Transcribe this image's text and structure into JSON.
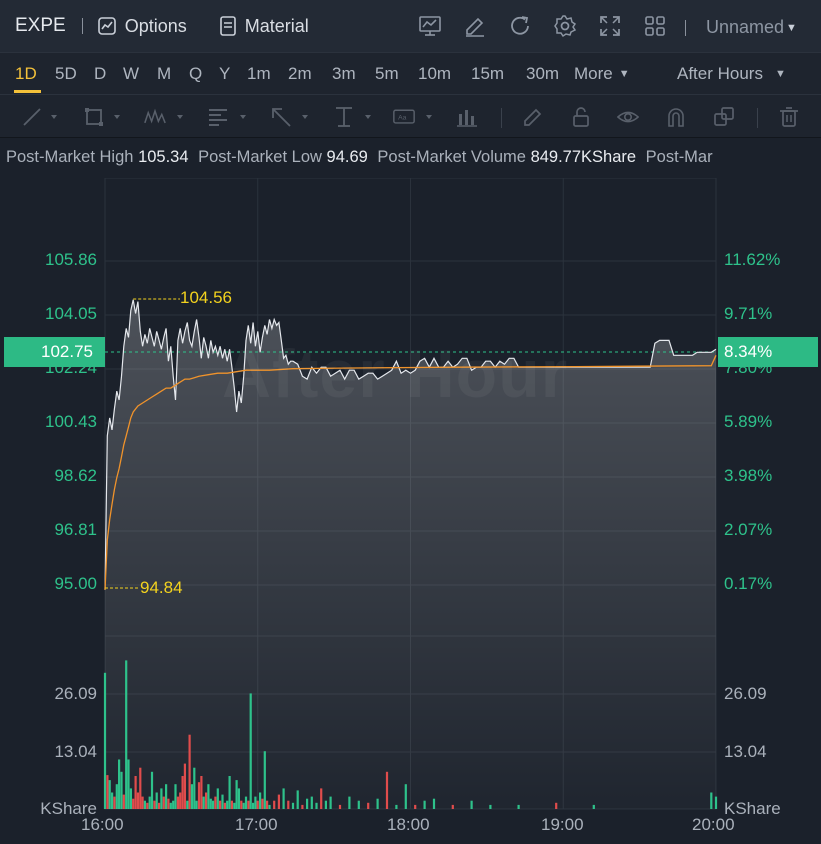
{
  "toolbar": {
    "symbol": "EXPE",
    "options_label": "Options",
    "material_label": "Material",
    "icons": [
      "chart-indicator-icon",
      "draw-icon",
      "refresh-icon",
      "settings-icon",
      "fullscreen-icon",
      "grid-layout-icon"
    ],
    "layout_label": "Unnamed"
  },
  "periods": [
    "1D",
    "5D",
    "D",
    "W",
    "M",
    "Q",
    "Y",
    "1m",
    "2m",
    "3m",
    "5m",
    "10m",
    "15m",
    "30m"
  ],
  "active_period": "1D",
  "more_label": "More",
  "session_label": "After Hours",
  "drawing_tools": [
    "line-tool-icon",
    "rectangle-tool-icon",
    "pattern-tool-icon",
    "text-tool-icon",
    "arrow-tool-icon",
    "measure-tool-icon",
    "annotation-tool-icon",
    "bar-tool-icon",
    "brush-icon",
    "lock-icon",
    "eye-icon",
    "magnet-icon",
    "copy-icon",
    "trash-icon"
  ],
  "stats": [
    {
      "label": "Post-Market High",
      "value": "105.34"
    },
    {
      "label": "Post-Market Low",
      "value": "94.69"
    },
    {
      "label": "Post-Market Volume",
      "value": "849.77KShare"
    },
    {
      "label": "Post-Mar",
      "value": ""
    }
  ],
  "watermark": "After Hour",
  "current_price": "102.75",
  "current_pct": "8.34%",
  "colors": {
    "up": "#2ec28b",
    "down": "#e04c4c",
    "price_line": "#e4e7ec",
    "avg_line": "#f0932b",
    "annotation": "#f3d21e",
    "active": "#f3c13a"
  },
  "chart_data": {
    "type": "line",
    "x_ticks": [
      "16:00",
      "17:00",
      "18:00",
      "19:00",
      "20:00"
    ],
    "y_ticks_price": [
      "105.86",
      "104.05",
      "102.24",
      "100.43",
      "98.62",
      "96.81",
      "95.00"
    ],
    "y_ticks_pct": [
      "11.62%",
      "9.71%",
      "7.80%",
      "5.89%",
      "3.98%",
      "2.07%",
      "0.17%"
    ],
    "ylim_price": [
      95.0,
      105.86
    ],
    "volume_ticks": [
      "26.09",
      "13.04"
    ],
    "volume_unit": "KShare",
    "annotations": {
      "high": "104.56",
      "low": "94.84"
    },
    "price_series": [
      [
        0,
        94.84
      ],
      [
        1,
        100.0
      ],
      [
        2,
        100.6
      ],
      [
        3,
        100.2
      ],
      [
        4,
        100.9
      ],
      [
        5,
        101.5
      ],
      [
        6,
        101.2
      ],
      [
        7,
        102.0
      ],
      [
        8,
        103.0
      ],
      [
        9,
        103.6
      ],
      [
        10,
        103.3
      ],
      [
        11,
        104.2
      ],
      [
        12,
        104.56
      ],
      [
        13,
        104.1
      ],
      [
        14,
        104.5
      ],
      [
        15,
        103.5
      ],
      [
        16,
        103.0
      ],
      [
        17,
        103.4
      ],
      [
        18,
        103.1
      ],
      [
        19,
        103.6
      ],
      [
        20,
        103.3
      ],
      [
        21,
        103.0
      ],
      [
        22,
        103.5
      ],
      [
        23,
        103.2
      ],
      [
        24,
        102.9
      ],
      [
        25,
        103.3
      ],
      [
        26,
        103.6
      ],
      [
        27,
        102.5
      ],
      [
        28,
        103.0
      ],
      [
        29,
        102.0
      ],
      [
        30,
        101.2
      ],
      [
        31,
        103.2
      ],
      [
        32,
        103.6
      ],
      [
        33,
        103.1
      ],
      [
        34,
        103.5
      ],
      [
        35,
        103.8
      ],
      [
        36,
        103.2
      ],
      [
        37,
        103.0
      ],
      [
        38,
        103.5
      ],
      [
        39,
        103.9
      ],
      [
        40,
        103.3
      ],
      [
        41,
        102.6
      ],
      [
        42,
        103.3
      ],
      [
        43,
        103.0
      ],
      [
        44,
        102.6
      ],
      [
        45,
        103.2
      ],
      [
        46,
        102.8
      ],
      [
        47,
        103.0
      ],
      [
        48,
        102.7
      ],
      [
        49,
        103.0
      ],
      [
        50,
        102.6
      ],
      [
        51,
        102.9
      ],
      [
        52,
        102.5
      ],
      [
        53,
        102.9
      ],
      [
        54,
        102.3
      ],
      [
        55,
        101.6
      ],
      [
        56,
        100.8
      ],
      [
        57,
        101.5
      ],
      [
        58,
        101.1
      ],
      [
        59,
        102.0
      ],
      [
        60,
        103.2
      ],
      [
        61,
        103.7
      ],
      [
        62,
        103.1
      ],
      [
        63,
        103.8
      ],
      [
        64,
        103.0
      ],
      [
        65,
        103.5
      ],
      [
        66,
        102.8
      ],
      [
        67,
        103.3
      ],
      [
        68,
        103.7
      ],
      [
        69,
        103.4
      ],
      [
        70,
        103.9
      ],
      [
        71,
        103.6
      ],
      [
        72,
        103.9
      ],
      [
        73,
        103.7
      ],
      [
        74,
        103.8
      ],
      [
        75,
        103.2
      ],
      [
        76,
        102.6
      ],
      [
        77,
        102.7
      ],
      [
        78,
        102.4
      ],
      [
        79,
        102.5
      ],
      [
        80,
        102.5
      ],
      [
        82,
        102.4
      ],
      [
        84,
        102.0
      ],
      [
        86,
        101.9
      ],
      [
        88,
        102.3
      ],
      [
        90,
        102.1
      ],
      [
        92,
        102.3
      ],
      [
        94,
        102.3
      ],
      [
        96,
        102.0
      ],
      [
        98,
        102.1
      ],
      [
        100,
        102.2
      ],
      [
        102,
        101.9
      ],
      [
        104,
        102.2
      ],
      [
        106,
        102.2
      ],
      [
        108,
        101.9
      ],
      [
        110,
        102.0
      ],
      [
        112,
        102.1
      ],
      [
        114,
        102.1
      ],
      [
        116,
        101.9
      ],
      [
        118,
        102.0
      ],
      [
        120,
        102.1
      ],
      [
        122,
        102.2
      ],
      [
        124,
        102.5
      ],
      [
        126,
        102.1
      ],
      [
        128,
        102.2
      ],
      [
        130,
        102.1
      ],
      [
        132,
        102.2
      ],
      [
        134,
        102.5
      ],
      [
        136,
        102.6
      ],
      [
        138,
        102.3
      ],
      [
        140,
        102.6
      ],
      [
        142,
        102.3
      ],
      [
        144,
        102.3
      ],
      [
        146,
        102.5
      ],
      [
        148,
        102.3
      ],
      [
        150,
        102.4
      ],
      [
        152,
        102.6
      ],
      [
        154,
        102.6
      ],
      [
        156,
        102.2
      ],
      [
        158,
        102.3
      ],
      [
        160,
        102.3
      ],
      [
        162,
        102.5
      ],
      [
        164,
        102.5
      ],
      [
        166,
        102.3
      ],
      [
        168,
        102.5
      ],
      [
        170,
        102.4
      ],
      [
        172,
        102.6
      ],
      [
        174,
        102.6
      ],
      [
        176,
        102.3
      ],
      [
        178,
        102.3
      ],
      [
        180,
        102.3
      ],
      [
        182,
        102.3
      ],
      [
        184,
        102.3
      ],
      [
        186,
        102.3
      ],
      [
        188,
        102.3
      ],
      [
        190,
        102.3
      ],
      [
        192,
        102.3
      ],
      [
        194,
        102.3
      ],
      [
        196,
        102.3
      ],
      [
        198,
        102.3
      ],
      [
        200,
        102.3
      ],
      [
        202,
        102.3
      ],
      [
        204,
        102.3
      ],
      [
        206,
        102.3
      ],
      [
        208,
        102.3
      ],
      [
        210,
        102.3
      ],
      [
        212,
        102.3
      ],
      [
        214,
        102.3
      ],
      [
        216,
        102.3
      ],
      [
        218,
        102.3
      ],
      [
        220,
        102.3
      ],
      [
        222,
        102.3
      ],
      [
        224,
        102.3
      ],
      [
        226,
        102.3
      ],
      [
        228,
        102.3
      ],
      [
        230,
        102.3
      ],
      [
        232,
        102.3
      ],
      [
        234,
        103.1
      ],
      [
        236,
        103.2
      ],
      [
        238,
        103.2
      ],
      [
        240,
        103.2
      ],
      [
        242,
        102.7
      ],
      [
        244,
        102.7
      ],
      [
        246,
        102.7
      ],
      [
        248,
        102.7
      ],
      [
        250,
        102.7
      ],
      [
        252,
        102.8
      ],
      [
        254,
        102.8
      ],
      [
        256,
        102.8
      ],
      [
        258,
        102.8
      ],
      [
        260,
        102.9
      ]
    ],
    "avg_series": [
      [
        0,
        94.84
      ],
      [
        1,
        96.5
      ],
      [
        2,
        97.2
      ],
      [
        3,
        97.7
      ],
      [
        4,
        98.2
      ],
      [
        5,
        98.6
      ],
      [
        6,
        98.9
      ],
      [
        7,
        99.3
      ],
      [
        8,
        99.7
      ],
      [
        9,
        100.0
      ],
      [
        10,
        100.3
      ],
      [
        11,
        100.6
      ],
      [
        12,
        100.8
      ],
      [
        14,
        101.0
      ],
      [
        16,
        101.1
      ],
      [
        18,
        101.2
      ],
      [
        20,
        101.3
      ],
      [
        22,
        101.4
      ],
      [
        24,
        101.5
      ],
      [
        26,
        101.6
      ],
      [
        28,
        101.6
      ],
      [
        30,
        101.7
      ],
      [
        32,
        101.8
      ],
      [
        34,
        101.9
      ],
      [
        36,
        101.9
      ],
      [
        38,
        101.95
      ],
      [
        40,
        102.0
      ],
      [
        44,
        102.05
      ],
      [
        48,
        102.1
      ],
      [
        52,
        102.1
      ],
      [
        56,
        102.15
      ],
      [
        60,
        102.2
      ],
      [
        70,
        102.2
      ],
      [
        80,
        102.25
      ],
      [
        100,
        102.27
      ],
      [
        150,
        102.3
      ],
      [
        200,
        102.32
      ],
      [
        258,
        102.35
      ],
      [
        260,
        102.7
      ]
    ],
    "volume_bars": [
      [
        0,
        33.0,
        "up"
      ],
      [
        1,
        8.2,
        "down"
      ],
      [
        2,
        7.0,
        "up"
      ],
      [
        3,
        4.0,
        "up"
      ],
      [
        4,
        3.0,
        "down"
      ],
      [
        5,
        6.0,
        "up"
      ],
      [
        6,
        12.0,
        "up"
      ],
      [
        7,
        9.0,
        "up"
      ],
      [
        8,
        3.5,
        "down"
      ],
      [
        9,
        36.0,
        "up"
      ],
      [
        10,
        12.0,
        "up"
      ],
      [
        11,
        5.0,
        "up"
      ],
      [
        12,
        2.5,
        "down"
      ],
      [
        13,
        8.0,
        "down"
      ],
      [
        14,
        4.0,
        "down"
      ],
      [
        15,
        10.0,
        "down"
      ],
      [
        16,
        3.0,
        "down"
      ],
      [
        17,
        2.0,
        "up"
      ],
      [
        18,
        1.5,
        "down"
      ],
      [
        19,
        3.0,
        "up"
      ],
      [
        20,
        9.0,
        "up"
      ],
      [
        21,
        2.0,
        "down"
      ],
      [
        22,
        4.0,
        "up"
      ],
      [
        23,
        1.5,
        "down"
      ],
      [
        24,
        5.0,
        "up"
      ],
      [
        25,
        3.0,
        "down"
      ],
      [
        26,
        6.0,
        "up"
      ],
      [
        27,
        2.5,
        "down"
      ],
      [
        28,
        1.5,
        "up"
      ],
      [
        29,
        2.0,
        "up"
      ],
      [
        30,
        6.0,
        "up"
      ],
      [
        31,
        3.0,
        "down"
      ],
      [
        32,
        4.0,
        "down"
      ],
      [
        33,
        8.0,
        "down"
      ],
      [
        34,
        11.0,
        "down"
      ],
      [
        35,
        2.0,
        "up"
      ],
      [
        36,
        18.0,
        "down"
      ],
      [
        37,
        6.0,
        "up"
      ],
      [
        38,
        10.0,
        "up"
      ],
      [
        39,
        2.0,
        "up"
      ],
      [
        40,
        6.5,
        "down"
      ],
      [
        41,
        8.0,
        "down"
      ],
      [
        42,
        3.0,
        "up"
      ],
      [
        43,
        4.0,
        "down"
      ],
      [
        44,
        6.0,
        "up"
      ],
      [
        45,
        2.5,
        "up"
      ],
      [
        46,
        2.0,
        "up"
      ],
      [
        47,
        3.0,
        "down"
      ],
      [
        48,
        5.0,
        "up"
      ],
      [
        49,
        2.0,
        "down"
      ],
      [
        50,
        3.5,
        "up"
      ],
      [
        51,
        1.5,
        "down"
      ],
      [
        52,
        2.0,
        "up"
      ],
      [
        53,
        8.0,
        "up"
      ],
      [
        54,
        2.0,
        "down"
      ],
      [
        55,
        1.5,
        "up"
      ],
      [
        56,
        7.0,
        "up"
      ],
      [
        57,
        5.0,
        "up"
      ],
      [
        58,
        2.0,
        "down"
      ],
      [
        59,
        1.5,
        "up"
      ],
      [
        60,
        3.0,
        "up"
      ],
      [
        61,
        2.0,
        "down"
      ],
      [
        62,
        28.0,
        "up"
      ],
      [
        63,
        1.5,
        "up"
      ],
      [
        64,
        3.0,
        "up"
      ],
      [
        65,
        2.0,
        "down"
      ],
      [
        66,
        4.0,
        "up"
      ],
      [
        67,
        2.5,
        "down"
      ],
      [
        68,
        14.0,
        "up"
      ],
      [
        69,
        2.0,
        "down"
      ],
      [
        70,
        1.0,
        "up"
      ],
      [
        72,
        2.0,
        "down"
      ],
      [
        74,
        3.5,
        "down"
      ],
      [
        76,
        5.0,
        "up"
      ],
      [
        78,
        2.0,
        "down"
      ],
      [
        80,
        1.5,
        "up"
      ],
      [
        82,
        4.5,
        "up"
      ],
      [
        84,
        1.0,
        "down"
      ],
      [
        86,
        2.5,
        "up"
      ],
      [
        88,
        3.0,
        "up"
      ],
      [
        90,
        1.5,
        "up"
      ],
      [
        92,
        5.0,
        "down"
      ],
      [
        94,
        2.0,
        "up"
      ],
      [
        96,
        3.0,
        "up"
      ],
      [
        100,
        1.0,
        "down"
      ],
      [
        104,
        3.0,
        "up"
      ],
      [
        108,
        2.0,
        "up"
      ],
      [
        112,
        1.5,
        "down"
      ],
      [
        116,
        2.5,
        "up"
      ],
      [
        120,
        9.0,
        "down"
      ],
      [
        124,
        1.0,
        "up"
      ],
      [
        128,
        6.0,
        "up"
      ],
      [
        132,
        1.0,
        "down"
      ],
      [
        136,
        2.0,
        "up"
      ],
      [
        140,
        2.5,
        "up"
      ],
      [
        148,
        1.0,
        "down"
      ],
      [
        156,
        2.0,
        "up"
      ],
      [
        164,
        1.0,
        "up"
      ],
      [
        176,
        1.0,
        "up"
      ],
      [
        192,
        1.5,
        "down"
      ],
      [
        208,
        1.0,
        "up"
      ],
      [
        258,
        4.0,
        "up"
      ],
      [
        260,
        3.0,
        "up"
      ]
    ]
  }
}
